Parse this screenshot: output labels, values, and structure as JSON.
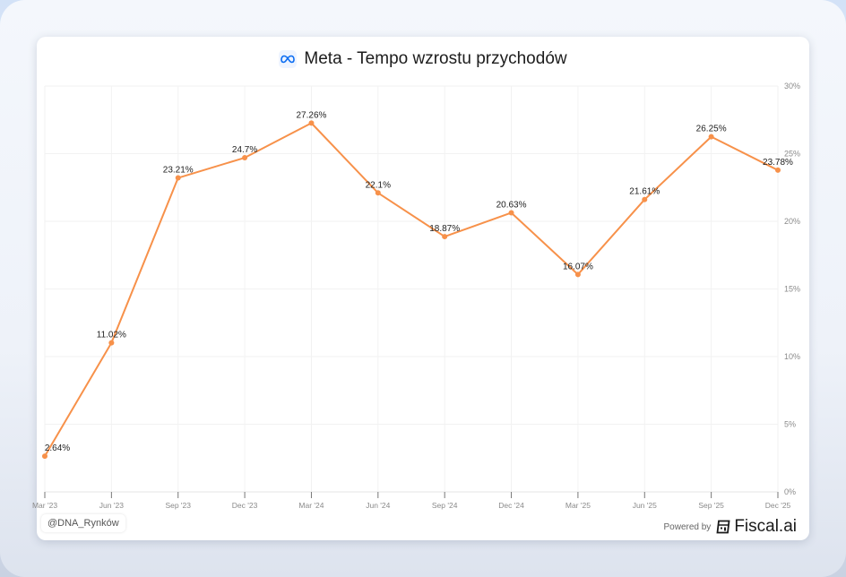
{
  "title": "Meta - Tempo wzrostu przychodów",
  "title_icon": "meta-infinity-icon",
  "watermark": "@DNA_Rynków",
  "footer": {
    "powered_by": "Powered by",
    "brand": "Fiscal.ai",
    "brand_icon": "calculator-icon"
  },
  "colors": {
    "line": "#f7914a",
    "grid": "#f2f2f2",
    "axis_text": "#8a8a8a",
    "label_text": "#222222"
  },
  "chart_data": {
    "type": "line",
    "title": "Meta - Tempo wzrostu przychodów",
    "xlabel": "",
    "ylabel": "",
    "categories": [
      "Mar '23",
      "Jun '23",
      "Sep '23",
      "Dec '23",
      "Mar '24",
      "Jun '24",
      "Sep '24",
      "Dec '24",
      "Mar '25",
      "Jun '25",
      "Sep '25",
      "Dec '25"
    ],
    "series": [
      {
        "name": "Tempo wzrostu przychodów",
        "values": [
          2.64,
          11.02,
          23.21,
          24.7,
          27.26,
          22.1,
          18.87,
          20.63,
          16.07,
          21.61,
          26.25,
          23.78
        ]
      }
    ],
    "data_labels": [
      "2.64%",
      "11.02%",
      "23.21%",
      "24.7%",
      "27.26%",
      "22.1%",
      "18.87%",
      "20.63%",
      "16.07%",
      "21.61%",
      "26.25%",
      "23.78%"
    ],
    "y_ticks": [
      "0%",
      "5%",
      "10%",
      "15%",
      "20%",
      "25%",
      "30%"
    ],
    "ylim": [
      0,
      30
    ],
    "y_axis_position": "right",
    "grid": true,
    "legend": "none"
  }
}
